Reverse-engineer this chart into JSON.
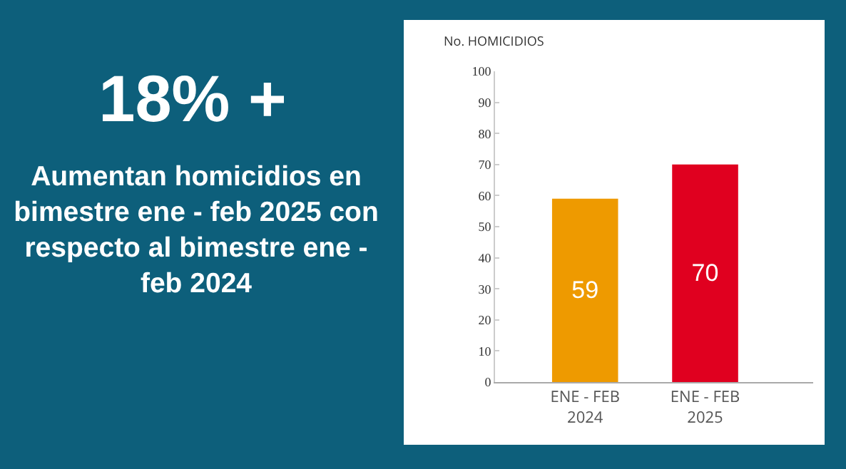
{
  "chart_data": {
    "type": "bar",
    "title": "18% +",
    "subtitle": "Aumentan homicidios en bimestre ene - feb 2025 con respecto al bimestre ene - feb 2024",
    "ylabel": "No. HOMICIDIOS",
    "categories": [
      "ENE - FEB\n2024",
      "ENE - FEB\n2025"
    ],
    "values": [
      59,
      70
    ],
    "colors": [
      "#ee9a00",
      "#e0001f"
    ],
    "ylim": [
      0,
      100
    ],
    "yticks": [
      0,
      10,
      20,
      30,
      40,
      50,
      60,
      70,
      80,
      90,
      100
    ],
    "grid": false,
    "data_labels": true
  }
}
